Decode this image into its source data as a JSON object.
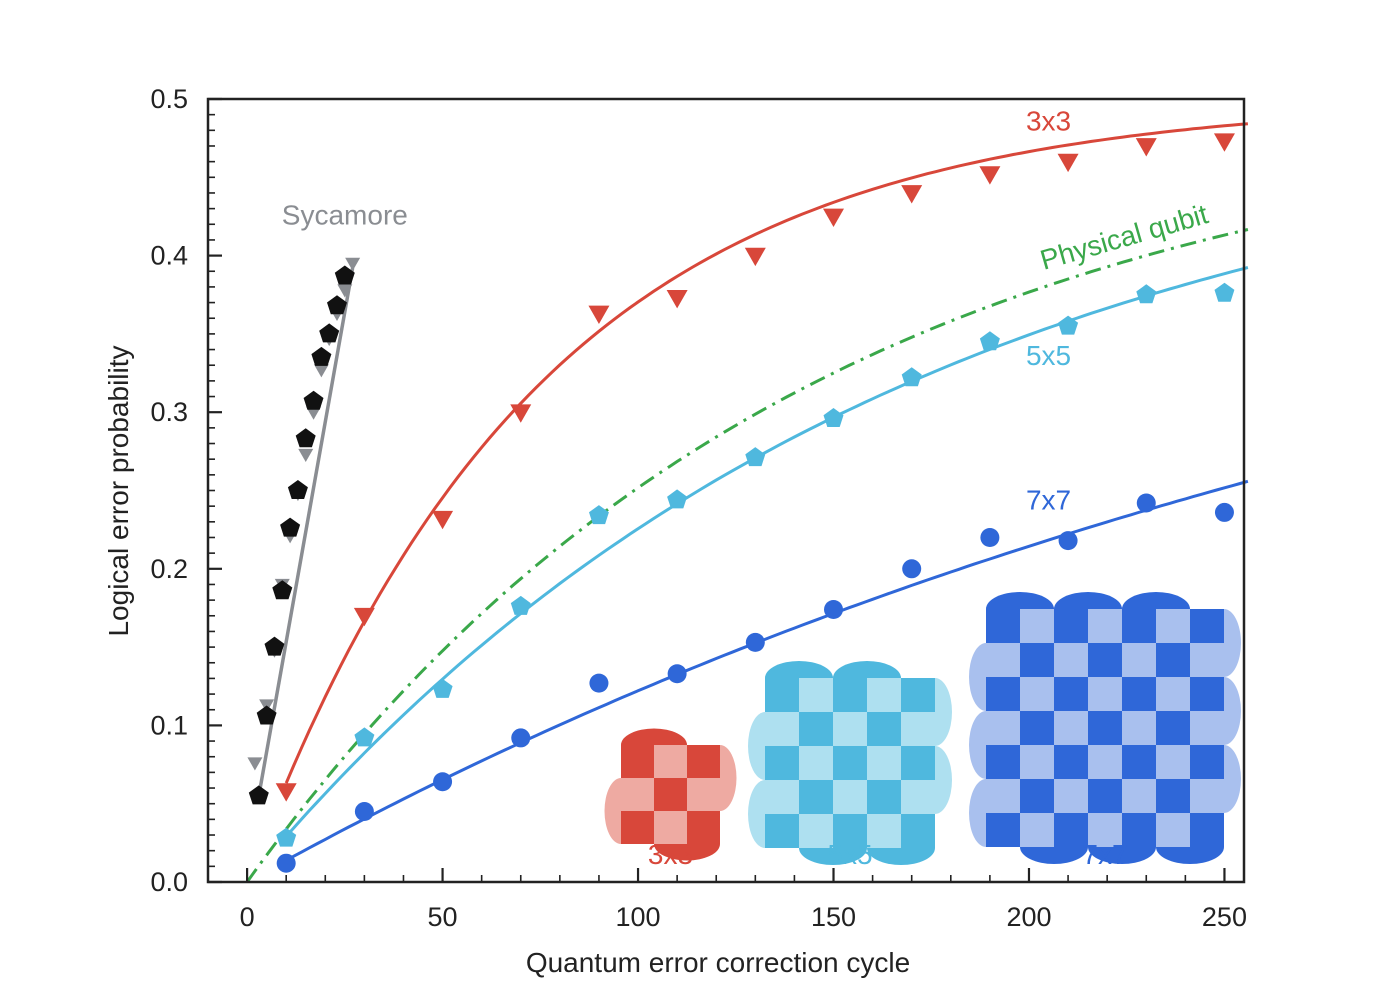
{
  "chart_data": {
    "type": "scatter",
    "title": "",
    "xlabel": "Quantum error correction cycle",
    "ylabel": "Logical error probability",
    "xlim": [
      -10,
      255
    ],
    "ylim": [
      0,
      0.5
    ],
    "x_ticks": [
      0,
      50,
      100,
      150,
      200,
      250
    ],
    "y_ticks": [
      0.0,
      0.1,
      0.2,
      0.3,
      0.4,
      0.5
    ],
    "x_tick_labels": [
      "0",
      "50",
      "100",
      "150",
      "200",
      "250"
    ],
    "y_tick_labels": [
      "0.0",
      "0.1",
      "0.2",
      "0.3",
      "0.4",
      "0.5"
    ],
    "grid": false,
    "series": [
      {
        "name": "Sycamore",
        "color": "#8a8d92",
        "marker": "triangle-down",
        "x": [
          2,
          5,
          7,
          9,
          11,
          13,
          15,
          17,
          19,
          21,
          23,
          25,
          27
        ],
        "y": [
          0.076,
          0.113,
          0.148,
          0.19,
          0.221,
          0.248,
          0.273,
          0.3,
          0.327,
          0.347,
          0.363,
          0.378,
          0.395
        ]
      },
      {
        "name": "",
        "color": "#111111",
        "marker": "pentagon",
        "x": [
          3,
          5,
          7,
          9,
          11,
          13,
          15,
          17,
          19,
          21,
          23,
          25
        ],
        "y": [
          0.055,
          0.106,
          0.15,
          0.186,
          0.226,
          0.25,
          0.283,
          0.307,
          0.335,
          0.35,
          0.368,
          0.387
        ]
      },
      {
        "name": "3x3",
        "color": "#d8473a",
        "marker": "triangle-down",
        "x": [
          10,
          30,
          50,
          70,
          90,
          110,
          130,
          150,
          170,
          190,
          210,
          230,
          250
        ],
        "y": [
          0.058,
          0.17,
          0.232,
          0.3,
          0.363,
          0.373,
          0.4,
          0.425,
          0.44,
          0.452,
          0.46,
          0.47,
          0.473
        ]
      },
      {
        "name": "5x5",
        "color": "#4fb8de",
        "marker": "pentagon",
        "x": [
          10,
          30,
          50,
          70,
          90,
          110,
          130,
          150,
          170,
          190,
          210,
          230,
          250
        ],
        "y": [
          0.028,
          0.092,
          0.123,
          0.176,
          0.234,
          0.244,
          0.271,
          0.296,
          0.322,
          0.345,
          0.355,
          0.375,
          0.376
        ]
      },
      {
        "name": "7x7",
        "color": "#2f67d8",
        "marker": "circle",
        "x": [
          10,
          30,
          50,
          70,
          90,
          110,
          130,
          150,
          170,
          190,
          210,
          230,
          250
        ],
        "y": [
          0.012,
          0.045,
          0.064,
          0.092,
          0.127,
          0.133,
          0.153,
          0.174,
          0.2,
          0.22,
          0.218,
          0.242,
          0.236
        ]
      },
      {
        "name": "Physical qubit",
        "color": "#3aa84a",
        "marker": "none",
        "line_style": "dash-dot"
      }
    ],
    "fit_lines": [
      {
        "series": "Sycamore",
        "x": [
          3,
          27
        ],
        "y": [
          0.055,
          0.392
        ]
      },
      {
        "series": "3x3",
        "model": "saturating",
        "asymptote": 0.5,
        "rate": 0.0135,
        "x_start": 10,
        "x_end": 256
      },
      {
        "series": "Physical qubit",
        "model": "saturating",
        "asymptote": 0.5,
        "rate": 0.007,
        "x_start": 0,
        "x_end": 256
      },
      {
        "series": "5x5",
        "model": "saturating",
        "asymptote": 0.5,
        "rate": 0.006,
        "x_start": 10,
        "x_end": 256
      },
      {
        "series": "7x7",
        "model": "saturating",
        "asymptote": 0.5,
        "rate": 0.0028,
        "x_start": 10,
        "x_end": 256
      }
    ],
    "annotations": [
      {
        "text": "Sycamore",
        "color": "#8a8d92",
        "x": 25,
        "y": 0.42
      },
      {
        "text": "3x3",
        "color": "#d8473a",
        "x": 205,
        "y": 0.48
      },
      {
        "text": "Physical qubit",
        "color": "#3aa84a",
        "x": 225,
        "y": 0.406,
        "rotate": -16
      },
      {
        "text": "5x5",
        "color": "#4fb8de",
        "x": 205,
        "y": 0.33
      },
      {
        "text": "7x7",
        "color": "#2f67d8",
        "x": 205,
        "y": 0.238
      }
    ],
    "insets": [
      {
        "label": "3x3",
        "n": 3,
        "color_dark": "#d8473a",
        "color_light": "#eeaaa2"
      },
      {
        "label": "5x5",
        "n": 5,
        "color_dark": "#4fb8de",
        "color_light": "#aee0f0"
      },
      {
        "label": "7x7",
        "n": 7,
        "color_dark": "#2f67d8",
        "color_light": "#a9c0ee"
      }
    ]
  }
}
